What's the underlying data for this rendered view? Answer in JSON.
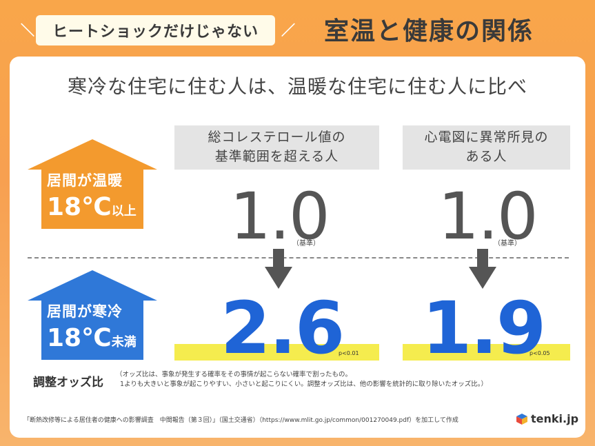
{
  "header": {
    "tag": "ヒートショックだけじゃない",
    "title": "室温と健康の関係"
  },
  "heading": "寒冷な住宅に住む人は、温暖な住宅に住む人に比べ",
  "columns": [
    {
      "line1": "総コレステロール値の",
      "line2": "基準範囲を超える人",
      "baseline": "1.0",
      "baseline_note": "（基準）",
      "value": "2.6",
      "p": "p<0.01"
    },
    {
      "line1": "心電図に異常所見の",
      "line2": "ある人",
      "baseline": "1.0",
      "baseline_note": "（基準）",
      "value": "1.9",
      "p": "p<0.05"
    }
  ],
  "warm_house": {
    "line1": "居間が温暖",
    "temp": "18℃",
    "suffix": "以上",
    "color": "#f39a2e"
  },
  "cold_house": {
    "line1": "居間が寒冷",
    "temp": "18℃",
    "suffix": "未満",
    "color": "#2f78d8"
  },
  "odds": {
    "label": "調整オッズ比",
    "note1": "オッズ比は、事象が発生する確率をその事情が起こらない確率で割ったもの。",
    "note2": "1よりも大きいと事象が起こりやすい、小さいと起こりにくい。調整オッズ比は、他の影響を統計的に取り除いたオッズ比。"
  },
  "source": "「断熱改修等による居住者の健康への影響調査　中間報告（第３回）」（国土交通省）（https://www.mlit.go.jp/common/001270049.pdf）を加工して作成",
  "brand": "tenki.jp"
}
